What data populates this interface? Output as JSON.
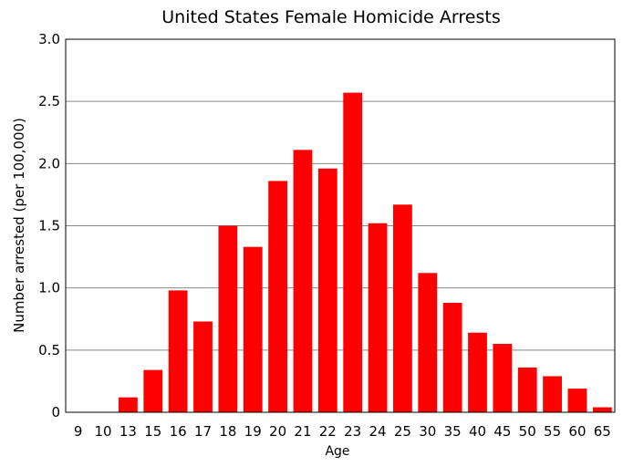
{
  "chart_data": {
    "type": "bar",
    "title": "United States Female Homicide Arrests",
    "xlabel": "Age",
    "ylabel": "Number arrested (per 100,000)",
    "categories": [
      "9",
      "10",
      "13",
      "15",
      "16",
      "17",
      "18",
      "19",
      "20",
      "21",
      "22",
      "23",
      "24",
      "25",
      "30",
      "35",
      "40",
      "45",
      "50",
      "55",
      "60",
      "65"
    ],
    "values": [
      0,
      0,
      0.12,
      0.34,
      0.98,
      0.73,
      1.5,
      1.33,
      1.86,
      2.11,
      1.96,
      2.57,
      1.52,
      1.67,
      1.12,
      0.88,
      0.64,
      0.55,
      0.36,
      0.29,
      0.19,
      0.04
    ],
    "ylim": [
      0,
      3.0
    ],
    "yticks": [
      "0",
      "0.5",
      "1.0",
      "1.5",
      "2.0",
      "2.5",
      "3.0"
    ],
    "grid": true,
    "bar_color": "#ff0000"
  }
}
